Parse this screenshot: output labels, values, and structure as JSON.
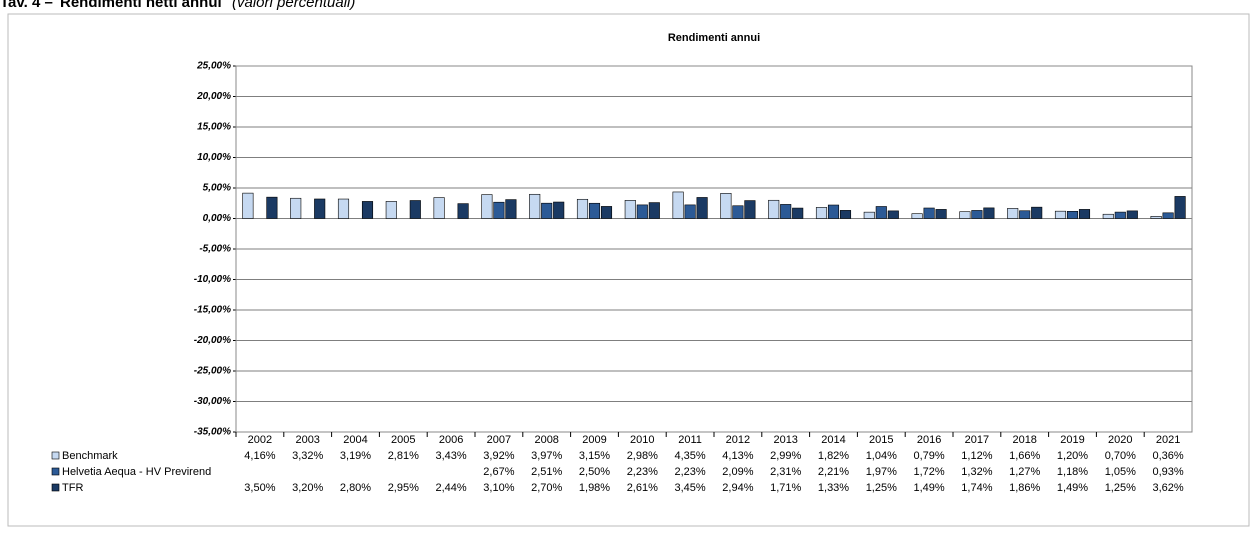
{
  "header": {
    "label": "Tav. 4 –",
    "title": "Rendimenti netti annui",
    "note": "(valori percentuali)"
  },
  "chart_data": {
    "type": "bar",
    "title": "Rendimenti annui",
    "categories": [
      "2002",
      "2003",
      "2004",
      "2005",
      "2006",
      "2007",
      "2008",
      "2009",
      "2010",
      "2011",
      "2012",
      "2013",
      "2014",
      "2015",
      "2016",
      "2017",
      "2018",
      "2019",
      "2020",
      "2021"
    ],
    "ylim": [
      -35,
      25
    ],
    "yticks": [
      {
        "value": 25,
        "label": "25,00%"
      },
      {
        "value": 20,
        "label": "20,00%"
      },
      {
        "value": 15,
        "label": "15,00%"
      },
      {
        "value": 10,
        "label": "10,00%"
      },
      {
        "value": 5,
        "label": "5,00%"
      },
      {
        "value": 0,
        "label": "0,00%"
      },
      {
        "value": -5,
        "label": "-5,00%"
      },
      {
        "value": -10,
        "label": "-10,00%"
      },
      {
        "value": -15,
        "label": "-15,00%"
      },
      {
        "value": -20,
        "label": "-20,00%"
      },
      {
        "value": -25,
        "label": "-25,00%"
      },
      {
        "value": -30,
        "label": "-30,00%"
      },
      {
        "value": -35,
        "label": "-35,00%"
      }
    ],
    "grid": true,
    "series": [
      {
        "name": "Benchmark",
        "color": "#c6d9f1",
        "values": [
          4.16,
          3.32,
          3.19,
          2.81,
          3.43,
          3.92,
          3.97,
          3.15,
          2.98,
          4.35,
          4.13,
          2.99,
          1.82,
          1.04,
          0.79,
          1.12,
          1.66,
          1.2,
          0.7,
          0.36
        ],
        "value_labels": [
          "4,16%",
          "3,32%",
          "3,19%",
          "2,81%",
          "3,43%",
          "3,92%",
          "3,97%",
          "3,15%",
          "2,98%",
          "4,35%",
          "4,13%",
          "2,99%",
          "1,82%",
          "1,04%",
          "0,79%",
          "1,12%",
          "1,66%",
          "1,20%",
          "0,70%",
          "0,36%"
        ]
      },
      {
        "name": "Helvetia Aequa - HV Previrend",
        "color": "#2c5a96",
        "values": [
          null,
          null,
          null,
          null,
          null,
          2.67,
          2.51,
          2.5,
          2.23,
          2.23,
          2.09,
          2.31,
          2.21,
          1.97,
          1.72,
          1.32,
          1.27,
          1.18,
          1.05,
          0.93
        ],
        "value_labels": [
          null,
          null,
          null,
          null,
          null,
          "2,67%",
          "2,51%",
          "2,50%",
          "2,23%",
          "2,23%",
          "2,09%",
          "2,31%",
          "2,21%",
          "1,97%",
          "1,72%",
          "1,32%",
          "1,27%",
          "1,18%",
          "1,05%",
          "0,93%"
        ]
      },
      {
        "name": "TFR",
        "color": "#1b3a63",
        "values": [
          3.5,
          3.2,
          2.8,
          2.95,
          2.44,
          3.1,
          2.7,
          1.98,
          2.61,
          3.45,
          2.94,
          1.71,
          1.33,
          1.25,
          1.49,
          1.74,
          1.86,
          1.49,
          1.25,
          3.62
        ],
        "value_labels": [
          "3,50%",
          "3,20%",
          "2,80%",
          "2,95%",
          "2,44%",
          "3,10%",
          "2,70%",
          "1,98%",
          "2,61%",
          "3,45%",
          "2,94%",
          "1,71%",
          "1,33%",
          "1,25%",
          "1,49%",
          "1,74%",
          "1,86%",
          "1,49%",
          "1,25%",
          "3,62%"
        ]
      }
    ]
  }
}
